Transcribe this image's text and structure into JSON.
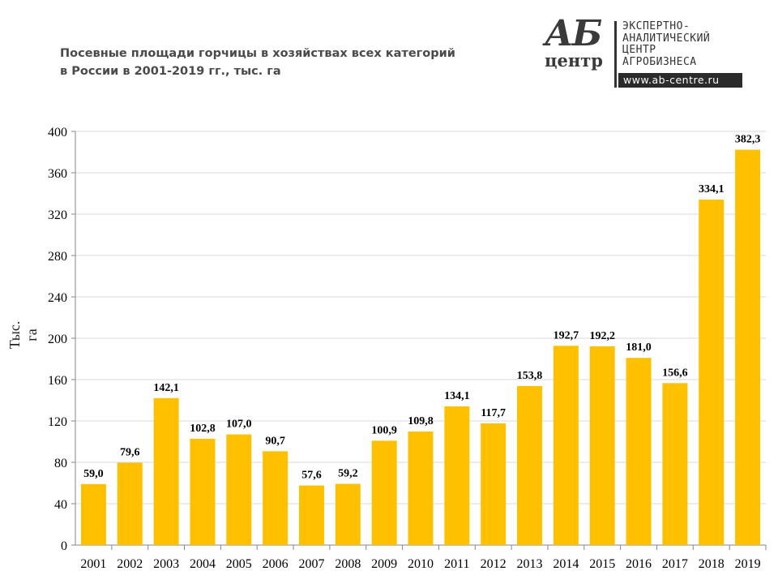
{
  "header": {
    "title_line1": "Посевные площади горчицы в хозяйствах всех категорий",
    "title_line2": "в России в 2001-2019 гг., тыс. га"
  },
  "logo": {
    "mark_top": "АБ",
    "mark_bottom": "центр",
    "line1": "ЭКСПЕРТНО-",
    "line2": "АНАЛИТИЧЕСКИЙ",
    "line3": "ЦЕНТР",
    "line4": "АГРОБИЗНЕСА",
    "url": "www.ab-centre.ru"
  },
  "colors": {
    "bar": "#FFC000",
    "grid": "#D9D9D9",
    "axis": "#868686",
    "text": "#000000"
  },
  "chart_data": {
    "type": "bar",
    "ylabel": "Тыс. га",
    "ylim": [
      0,
      400
    ],
    "yticks": [
      0,
      40,
      80,
      120,
      160,
      200,
      240,
      280,
      320,
      360,
      400
    ],
    "grid": true,
    "categories": [
      "2001",
      "2002",
      "2003",
      "2004",
      "2005",
      "2006",
      "2007",
      "2008",
      "2009",
      "2010",
      "2011",
      "2012",
      "2013",
      "2014",
      "2015",
      "2016",
      "2017",
      "2018",
      "2019"
    ],
    "values": [
      59.0,
      79.6,
      142.1,
      102.8,
      107.0,
      90.7,
      57.6,
      59.2,
      100.9,
      109.8,
      134.1,
      117.7,
      153.8,
      192.7,
      192.2,
      181.0,
      156.6,
      334.1,
      382.3
    ],
    "labels": [
      "59,0",
      "79,6",
      "142,1",
      "102,8",
      "107,0",
      "90,7",
      "57,6",
      "59,2",
      "100,9",
      "109,8",
      "134,1",
      "117,7",
      "153,8",
      "192,7",
      "192,2",
      "181,0",
      "156,6",
      "334,1",
      "382,3"
    ]
  }
}
